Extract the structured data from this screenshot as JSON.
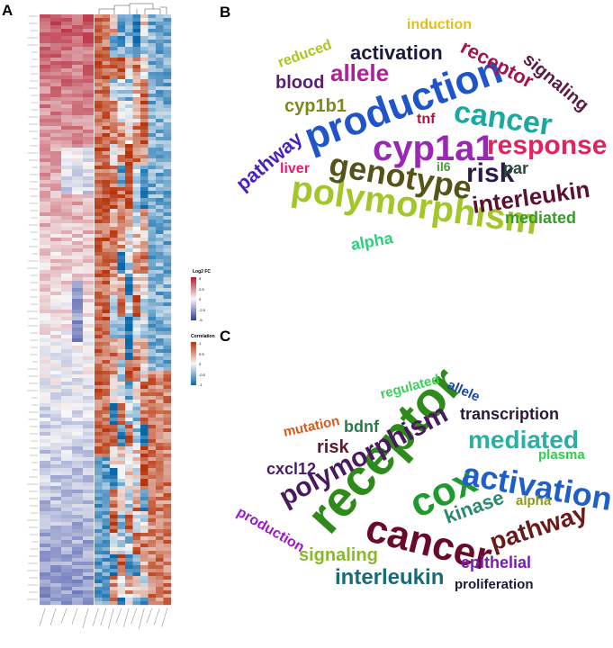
{
  "figure": {
    "panels": {
      "a": "A",
      "b": "B",
      "c": "C"
    }
  },
  "heatmap": {
    "legend_fc": {
      "title": "Log2 FC",
      "ticks": [
        "5",
        "2.5",
        "0",
        "-2.5",
        "-5"
      ]
    },
    "legend_corr": {
      "title": "Correlation",
      "ticks": [
        "1",
        "0.5",
        "0",
        "-0.5",
        "-1"
      ]
    },
    "colors": {
      "fc_high": "#b2182b",
      "fc_mid": "#f7f7f7",
      "fc_low": "#2c3e9e",
      "corr_high": "#b8340c",
      "corr_mid": "#f7f7f7",
      "corr_low": "#0868ac"
    }
  },
  "wordcloud_b": {
    "words": [
      {
        "text": "production",
        "color": "#1f55c8"
      },
      {
        "text": "cyp1a1",
        "color": "#9b27b5"
      },
      {
        "text": "polymorphism",
        "color": "#a3c72a"
      },
      {
        "text": "genotype",
        "color": "#54541a"
      },
      {
        "text": "cancer",
        "color": "#1aa8a0"
      },
      {
        "text": "response",
        "color": "#e0245c"
      },
      {
        "text": "allele",
        "color": "#b21d99"
      },
      {
        "text": "risk",
        "color": "#2b1a4a"
      },
      {
        "text": "interleukin",
        "color": "#5a1133"
      },
      {
        "text": "activation",
        "color": "#1a1a3c"
      },
      {
        "text": "receptor",
        "color": "#a3134c"
      },
      {
        "text": "signaling",
        "color": "#5c1a42"
      },
      {
        "text": "pathway",
        "color": "#4a1fbf"
      },
      {
        "text": "cyp1b1",
        "color": "#7c8a1a"
      },
      {
        "text": "blood",
        "color": "#5a1f6e"
      },
      {
        "text": "reduced",
        "color": "#a8c81e"
      },
      {
        "text": "induction",
        "color": "#e2bf1a"
      },
      {
        "text": "tnf",
        "color": "#b0143c"
      },
      {
        "text": "liver",
        "color": "#e81c6e"
      },
      {
        "text": "il6",
        "color": "#4a9a3a"
      },
      {
        "text": "par",
        "color": "#2a4a3a"
      },
      {
        "text": "mediated",
        "color": "#3a9a2a"
      },
      {
        "text": "alpha",
        "color": "#2ad17a"
      }
    ]
  },
  "wordcloud_c": {
    "words": [
      {
        "text": "receptor",
        "color": "#2e8a1a"
      },
      {
        "text": "cox",
        "color": "#1e9a2e"
      },
      {
        "text": "cancer",
        "color": "#6a0a2a"
      },
      {
        "text": "activation",
        "color": "#1f5fc8"
      },
      {
        "text": "polymorphism",
        "color": "#4a1a5e"
      },
      {
        "text": "mediated",
        "color": "#2ab0a0"
      },
      {
        "text": "pathway",
        "color": "#6a1a1a"
      },
      {
        "text": "interleukin",
        "color": "#1a6a7a"
      },
      {
        "text": "kinase",
        "color": "#2a8a6a"
      },
      {
        "text": "signaling",
        "color": "#8ab82a"
      },
      {
        "text": "transcription",
        "color": "#2a1a3a"
      },
      {
        "text": "risk",
        "color": "#5a1a2a"
      },
      {
        "text": "bdnf",
        "color": "#2a7a4a"
      },
      {
        "text": "mutation",
        "color": "#d65a1a"
      },
      {
        "text": "cxcl12",
        "color": "#4a1a6a"
      },
      {
        "text": "regulated",
        "color": "#3ad05a"
      },
      {
        "text": "allele",
        "color": "#1a4aa8"
      },
      {
        "text": "plasma",
        "color": "#2ad14a"
      },
      {
        "text": "alpha",
        "color": "#8a9a1a"
      },
      {
        "text": "production",
        "color": "#9a1ac8"
      },
      {
        "text": "epithelial",
        "color": "#7a1ab8"
      },
      {
        "text": "proliferation",
        "color": "#1a1a3a"
      }
    ]
  }
}
